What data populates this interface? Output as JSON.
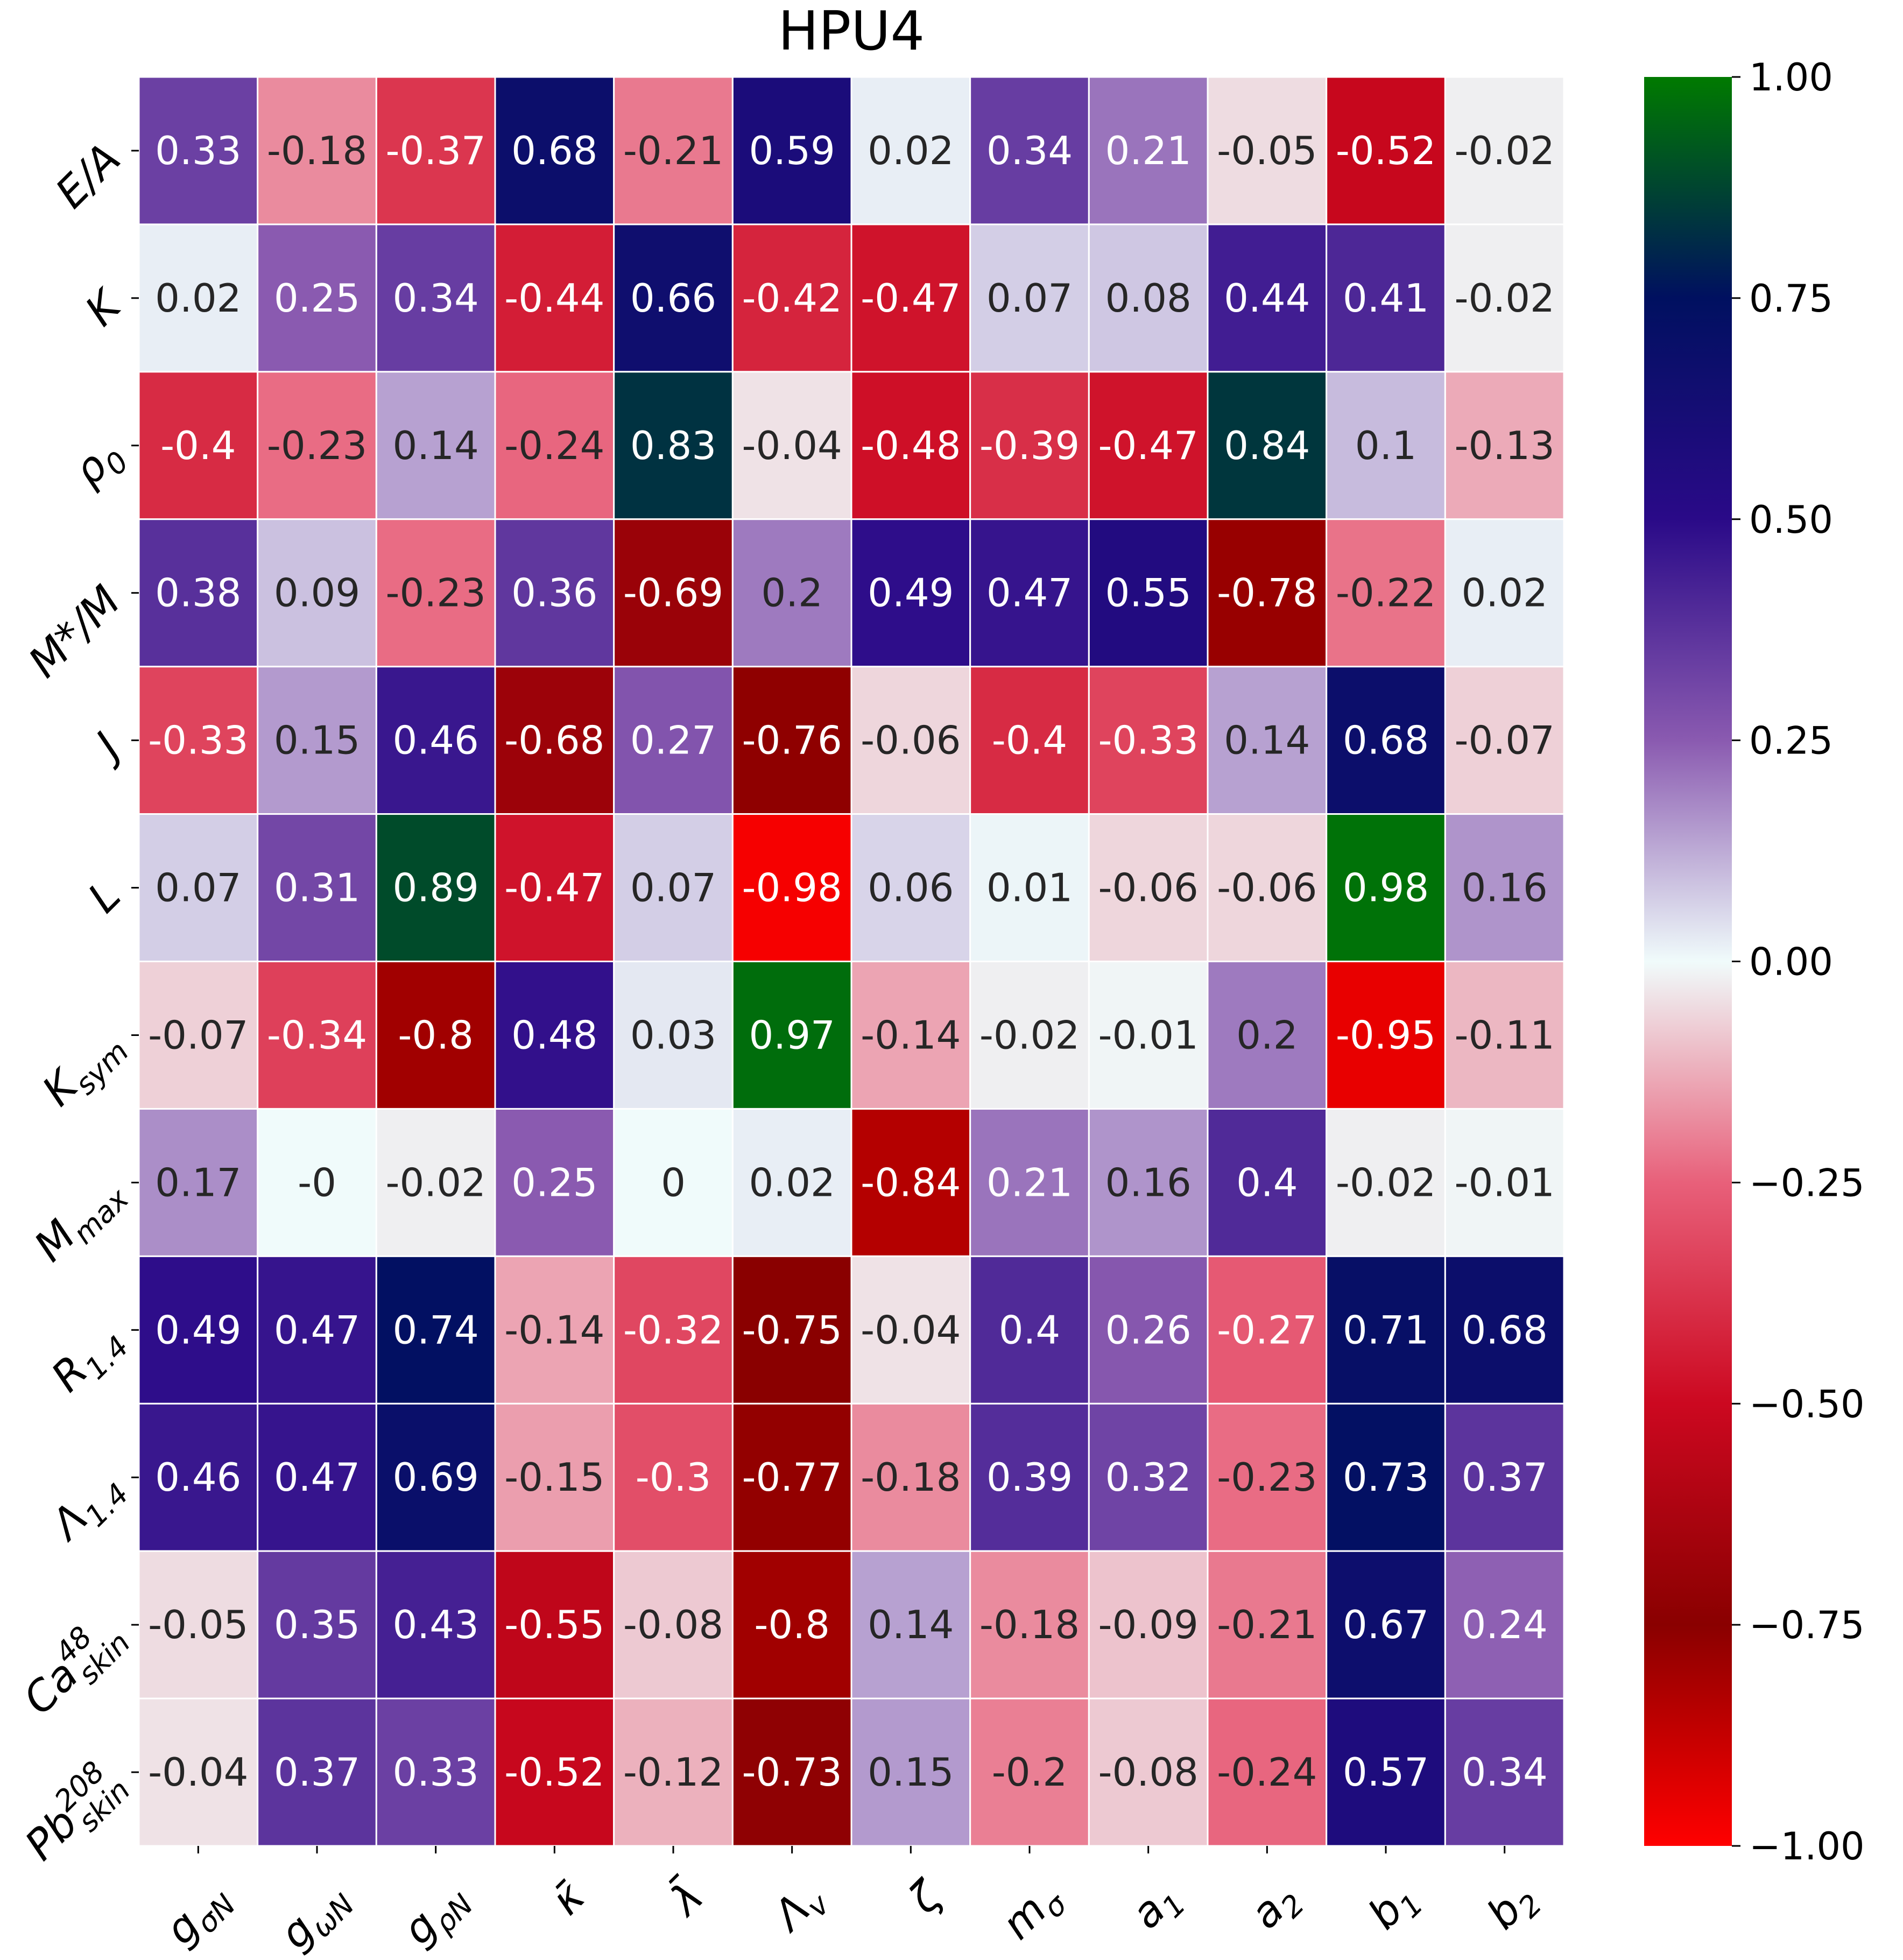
{
  "chart_data": {
    "type": "heatmap",
    "title": "HPU4",
    "rows": [
      {
        "base": "E/A",
        "sub": "",
        "sup": ""
      },
      {
        "base": "K",
        "sub": "",
        "sup": ""
      },
      {
        "base": "ρ",
        "sub": "0",
        "sup": ""
      },
      {
        "base": "M*/M",
        "sub": "",
        "sup": ""
      },
      {
        "base": "J",
        "sub": "",
        "sup": ""
      },
      {
        "base": "L",
        "sub": "",
        "sup": ""
      },
      {
        "base": "K",
        "sub": "sym",
        "sup": ""
      },
      {
        "base": "M",
        "sub": "max",
        "sup": ""
      },
      {
        "base": "R",
        "sub": "1.4",
        "sup": ""
      },
      {
        "base": "Λ",
        "sub": "1.4",
        "sup": ""
      },
      {
        "base": "Ca",
        "sub": "skin",
        "sup": "48"
      },
      {
        "base": "Pb",
        "sub": "skin",
        "sup": "208"
      }
    ],
    "columns": [
      {
        "base": "g",
        "sub": "σN"
      },
      {
        "base": "g",
        "sub": "ωN"
      },
      {
        "base": "g",
        "sub": "ρN"
      },
      {
        "base": "κ̄",
        "sub": ""
      },
      {
        "base": "λ̄",
        "sub": ""
      },
      {
        "base": "Λ",
        "sub": "v"
      },
      {
        "base": "ζ",
        "sub": ""
      },
      {
        "base": "m",
        "sub": "σ"
      },
      {
        "base": "a",
        "sub": "1"
      },
      {
        "base": "a",
        "sub": "2"
      },
      {
        "base": "b",
        "sub": "1"
      },
      {
        "base": "b",
        "sub": "2"
      }
    ],
    "values": [
      [
        0.33,
        -0.18,
        -0.37,
        0.68,
        -0.21,
        0.59,
        0.02,
        0.34,
        0.21,
        -0.05,
        -0.52,
        -0.02
      ],
      [
        0.02,
        0.25,
        0.34,
        -0.44,
        0.66,
        -0.42,
        -0.47,
        0.07,
        0.08,
        0.44,
        0.41,
        -0.02
      ],
      [
        -0.4,
        -0.23,
        0.14,
        -0.24,
        0.83,
        -0.04,
        -0.48,
        -0.39,
        -0.47,
        0.84,
        0.1,
        -0.13
      ],
      [
        0.38,
        0.09,
        -0.23,
        0.36,
        -0.69,
        0.2,
        0.49,
        0.47,
        0.55,
        -0.78,
        -0.22,
        0.02
      ],
      [
        -0.33,
        0.15,
        0.46,
        -0.68,
        0.27,
        -0.76,
        -0.06,
        -0.4,
        -0.33,
        0.14,
        0.68,
        -0.07
      ],
      [
        0.07,
        0.31,
        0.89,
        -0.47,
        0.07,
        -0.98,
        0.06,
        0.01,
        -0.06,
        -0.06,
        0.98,
        0.16
      ],
      [
        -0.07,
        -0.34,
        -0.8,
        0.48,
        0.03,
        0.97,
        -0.14,
        -0.02,
        -0.01,
        0.2,
        -0.95,
        -0.11
      ],
      [
        0.17,
        -0.0,
        -0.02,
        0.25,
        0.0,
        0.02,
        -0.84,
        0.21,
        0.16,
        0.4,
        -0.02,
        -0.01
      ],
      [
        0.49,
        0.47,
        0.74,
        -0.14,
        -0.32,
        -0.75,
        -0.04,
        0.4,
        0.26,
        -0.27,
        0.71,
        0.68
      ],
      [
        0.46,
        0.47,
        0.69,
        -0.15,
        -0.3,
        -0.77,
        -0.18,
        0.39,
        0.32,
        -0.23,
        0.73,
        0.37
      ],
      [
        -0.05,
        0.35,
        0.43,
        -0.55,
        -0.08,
        -0.8,
        0.14,
        -0.18,
        -0.09,
        -0.21,
        0.67,
        0.24
      ],
      [
        -0.04,
        0.37,
        0.33,
        -0.52,
        -0.12,
        -0.73,
        0.15,
        -0.2,
        -0.08,
        -0.24,
        0.57,
        0.34
      ]
    ],
    "value_labels": [
      [
        "0.33",
        "-0.18",
        "-0.37",
        "0.68",
        "-0.21",
        "0.59",
        "0.02",
        "0.34",
        "0.21",
        "-0.05",
        "-0.52",
        "-0.02"
      ],
      [
        "0.02",
        "0.25",
        "0.34",
        "-0.44",
        "0.66",
        "-0.42",
        "-0.47",
        "0.07",
        "0.08",
        "0.44",
        "0.41",
        "-0.02"
      ],
      [
        "-0.4",
        "-0.23",
        "0.14",
        "-0.24",
        "0.83",
        "-0.04",
        "-0.48",
        "-0.39",
        "-0.47",
        "0.84",
        "0.1",
        "-0.13"
      ],
      [
        "0.38",
        "0.09",
        "-0.23",
        "0.36",
        "-0.69",
        "0.2",
        "0.49",
        "0.47",
        "0.55",
        "-0.78",
        "-0.22",
        "0.02"
      ],
      [
        "-0.33",
        "0.15",
        "0.46",
        "-0.68",
        "0.27",
        "-0.76",
        "-0.06",
        "-0.4",
        "-0.33",
        "0.14",
        "0.68",
        "-0.07"
      ],
      [
        "0.07",
        "0.31",
        "0.89",
        "-0.47",
        "0.07",
        "-0.98",
        "0.06",
        "0.01",
        "-0.06",
        "-0.06",
        "0.98",
        "0.16"
      ],
      [
        "-0.07",
        "-0.34",
        "-0.8",
        "0.48",
        "0.03",
        "0.97",
        "-0.14",
        "-0.02",
        "-0.01",
        "0.2",
        "-0.95",
        "-0.11"
      ],
      [
        "0.17",
        "-0",
        "-0.02",
        "0.25",
        "0",
        "0.02",
        "-0.84",
        "0.21",
        "0.16",
        "0.4",
        "-0.02",
        "-0.01"
      ],
      [
        "0.49",
        "0.47",
        "0.74",
        "-0.14",
        "-0.32",
        "-0.75",
        "-0.04",
        "0.4",
        "0.26",
        "-0.27",
        "0.71",
        "0.68"
      ],
      [
        "0.46",
        "0.47",
        "0.69",
        "-0.15",
        "-0.3",
        "-0.77",
        "-0.18",
        "0.39",
        "0.32",
        "-0.23",
        "0.73",
        "0.37"
      ],
      [
        "-0.05",
        "0.35",
        "0.43",
        "-0.55",
        "-0.08",
        "-0.8",
        "0.14",
        "-0.18",
        "-0.09",
        "-0.21",
        "0.67",
        "0.24"
      ],
      [
        "-0.04",
        "0.37",
        "0.33",
        "-0.52",
        "-0.12",
        "-0.73",
        "0.15",
        "-0.2",
        "-0.08",
        "-0.24",
        "0.57",
        "0.34"
      ]
    ],
    "colorbar": {
      "range": [
        -1.0,
        1.0
      ],
      "ticks": [
        1.0,
        0.75,
        0.5,
        0.25,
        0.0,
        -0.25,
        -0.5,
        -0.75,
        -1.0
      ],
      "tick_labels": [
        "1.00",
        "0.75",
        "0.50",
        "0.25",
        "0.00",
        "−0.25",
        "−0.50",
        "−0.75",
        "−1.00"
      ],
      "placement": "right"
    },
    "colormap": [
      {
        "v": -1.0,
        "color": "#ff0000"
      },
      {
        "v": -0.5,
        "color": "#cc0820"
      },
      {
        "v": -0.75,
        "color": "#8a0000"
      },
      {
        "v": -0.25,
        "color": "#e8607a"
      },
      {
        "v": 0.0,
        "color": "#f0fbfb"
      },
      {
        "v": 0.25,
        "color": "#8a5ab0"
      },
      {
        "v": 0.5,
        "color": "#2a0a88"
      },
      {
        "v": 0.75,
        "color": "#001060"
      },
      {
        "v": 1.0,
        "color": "#007a00"
      }
    ]
  }
}
